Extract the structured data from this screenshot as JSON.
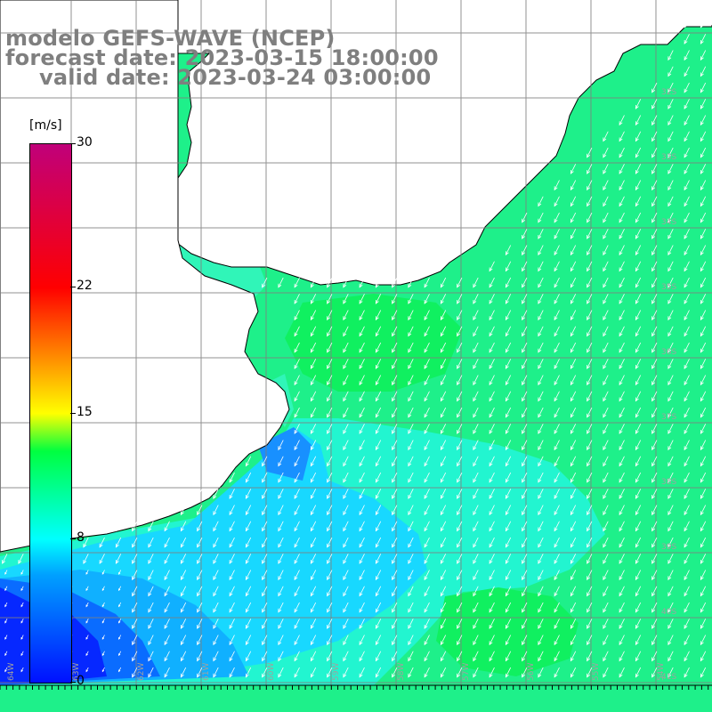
{
  "title": {
    "line1": "modelo GEFS-WAVE (NCEP)",
    "line2": "forecast date: 2023-03-15 18:00:00",
    "line3": "valid date: 2023-03-24 03:00:00"
  },
  "colorbar": {
    "unit": "[m/s]",
    "ticks": [
      "30",
      "22",
      "15",
      "8",
      "0"
    ],
    "tick_values": [
      30,
      22,
      15,
      8,
      0
    ]
  },
  "lat_labels": [
    "32S",
    "33S",
    "34S",
    "35S",
    "36S",
    "37S",
    "38S",
    "39S",
    "40S",
    "41S"
  ],
  "lon_labels": [
    "64W",
    "63W",
    "62W",
    "61W",
    "60W",
    "59W",
    "58W",
    "57W",
    "56W",
    "55W",
    "54W"
  ],
  "colors": {
    "land": "#ffffff",
    "coast": "#000000",
    "grid": "#7f7f7f",
    "arrow": "#ffffff",
    "title": "#7f7f7f"
  }
}
